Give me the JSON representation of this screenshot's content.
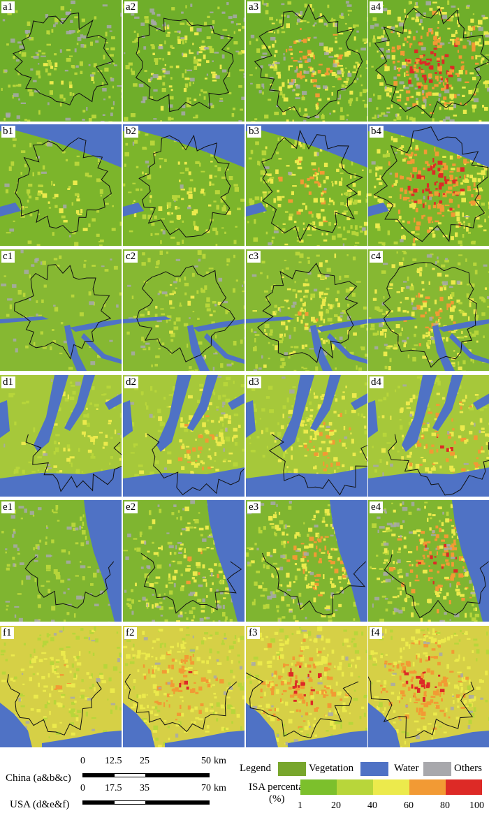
{
  "panels": [
    {
      "row": "a",
      "labels": [
        "a1",
        "a2",
        "a3",
        "a4"
      ],
      "intensity": [
        0.18,
        0.32,
        0.55,
        0.78
      ],
      "water": "none",
      "grey": 0.22,
      "base": "#6fae2a"
    },
    {
      "row": "b",
      "labels": [
        "b1",
        "b2",
        "b3",
        "b4"
      ],
      "intensity": [
        0.22,
        0.32,
        0.52,
        0.82
      ],
      "water": "river",
      "grey": 0.03,
      "base": "#7cb52b"
    },
    {
      "row": "c",
      "labels": [
        "c1",
        "c2",
        "c3",
        "c4"
      ],
      "intensity": [
        0.08,
        0.22,
        0.42,
        0.52
      ],
      "water": "delta",
      "grey": 0.08,
      "base": "#86b832"
    },
    {
      "row": "d",
      "labels": [
        "d1",
        "d2",
        "d3",
        "d4"
      ],
      "intensity": [
        0.3,
        0.48,
        0.52,
        0.62
      ],
      "water": "bay",
      "grey": 0.05,
      "base": "#a6c83a"
    },
    {
      "row": "e",
      "labels": [
        "e1",
        "e2",
        "e3",
        "e4"
      ],
      "intensity": [
        0.14,
        0.4,
        0.55,
        0.7
      ],
      "water": "lake",
      "grey": 0.18,
      "base": "#7fb530"
    },
    {
      "row": "f",
      "labels": [
        "f1",
        "f2",
        "f3",
        "f4"
      ],
      "intensity": [
        0.4,
        0.62,
        0.7,
        0.74
      ],
      "water": "coast",
      "grey": 0.06,
      "base": "#d6d046"
    }
  ],
  "scales": {
    "china": {
      "name": "China (a&b&c)",
      "ticks": [
        "0",
        "12.5",
        "25",
        "50"
      ],
      "unit": "km"
    },
    "usa": {
      "name": "USA (d&e&f)",
      "ticks": [
        "0",
        "17.5",
        "35",
        "70"
      ],
      "unit": "km"
    }
  },
  "legend": {
    "title": "Legend",
    "classes": [
      {
        "label": "Vegetation",
        "color": "#78a62c"
      },
      {
        "label": "Water",
        "color": "#4f72c5"
      },
      {
        "label": "Others",
        "color": "#a8a8ac"
      }
    ],
    "isa_title": "ISA percentage",
    "isa_unit": "(%)",
    "isa_colors": [
      "#7cc02c",
      "#b8d63a",
      "#ecea4c",
      "#f29a34",
      "#dd2a26"
    ],
    "isa_ticks": [
      "1",
      "20",
      "40",
      "60",
      "80",
      "100"
    ]
  }
}
